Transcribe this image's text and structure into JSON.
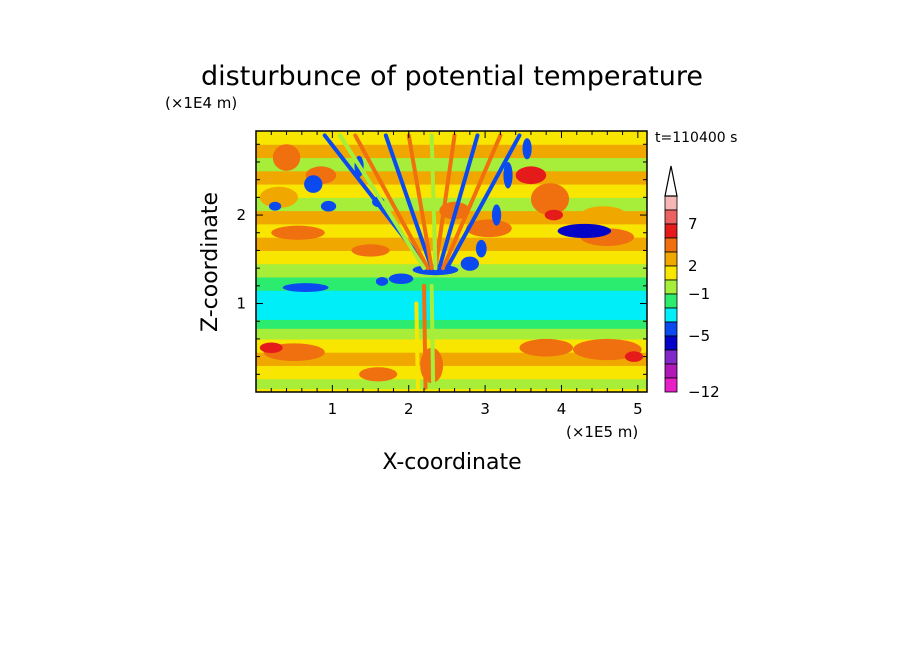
{
  "chart_data": {
    "type": "heatmap",
    "title": "disturbunce of potential temperature",
    "time_label": "t=110400 s",
    "xlabel": "X-coordinate",
    "ylabel": "Z-coordinate",
    "x_unit": "(×1E5 m)",
    "y_unit": "(×1E4 m)",
    "xlim": [
      0,
      5.12
    ],
    "ylim": [
      0,
      2.95
    ],
    "x_ticks": [
      "1",
      "2",
      "3",
      "4",
      "5"
    ],
    "y_ticks": [
      "1",
      "2"
    ],
    "colorbar": {
      "labels": [
        "7",
        "2",
        "−1",
        "−5",
        "−12"
      ],
      "label_values": [
        7,
        2,
        -1,
        -5,
        -12
      ],
      "colors": [
        "#f7b6b6",
        "#ec6262",
        "#e51b1b",
        "#f07010",
        "#f0a800",
        "#f8e600",
        "#a6ee3a",
        "#2bec6e",
        "#00eef8",
        "#0a4aef",
        "#0404c8",
        "#8228c8",
        "#b018b8",
        "#e81ec6"
      ],
      "extend": "max"
    },
    "bands": [
      {
        "z": 0.04,
        "level": 5
      },
      {
        "z": 0.15,
        "level": 6
      },
      {
        "z": 0.3,
        "level": 5
      },
      {
        "z": 0.45,
        "level": 4
      },
      {
        "z": 0.6,
        "level": 5
      },
      {
        "z": 0.72,
        "level": 6
      },
      {
        "z": 0.82,
        "level": 7
      },
      {
        "z": 1.0,
        "level": 8
      },
      {
        "z": 1.15,
        "level": 8
      },
      {
        "z": 1.3,
        "level": 7
      },
      {
        "z": 1.45,
        "level": 6
      },
      {
        "z": 1.6,
        "level": 5
      },
      {
        "z": 1.75,
        "level": 4
      },
      {
        "z": 1.9,
        "level": 5
      },
      {
        "z": 2.05,
        "level": 4
      },
      {
        "z": 2.2,
        "level": 6
      },
      {
        "z": 2.35,
        "level": 5
      },
      {
        "z": 2.5,
        "level": 4
      },
      {
        "z": 2.65,
        "level": 6
      },
      {
        "z": 2.8,
        "level": 4
      },
      {
        "z": 2.95,
        "level": 5
      }
    ],
    "blobs": [
      {
        "x": 0.3,
        "z": 2.2,
        "w": 0.25,
        "h": 0.12,
        "level": 4
      },
      {
        "x": 0.4,
        "z": 2.65,
        "w": 0.18,
        "h": 0.15,
        "level": 3
      },
      {
        "x": 0.85,
        "z": 2.45,
        "w": 0.2,
        "h": 0.1,
        "level": 3
      },
      {
        "x": 0.55,
        "z": 1.8,
        "w": 0.35,
        "h": 0.08,
        "level": 3
      },
      {
        "x": 1.5,
        "z": 1.6,
        "w": 0.25,
        "h": 0.07,
        "level": 3
      },
      {
        "x": 2.6,
        "z": 2.05,
        "w": 0.2,
        "h": 0.1,
        "level": 3
      },
      {
        "x": 3.05,
        "z": 1.85,
        "w": 0.3,
        "h": 0.1,
        "level": 3
      },
      {
        "x": 3.85,
        "z": 2.18,
        "w": 0.25,
        "h": 0.18,
        "level": 3
      },
      {
        "x": 3.6,
        "z": 2.45,
        "w": 0.2,
        "h": 0.1,
        "level": 2
      },
      {
        "x": 4.55,
        "z": 2.0,
        "w": 0.3,
        "h": 0.1,
        "level": 4
      },
      {
        "x": 4.6,
        "z": 0.48,
        "w": 0.45,
        "h": 0.12,
        "level": 3
      },
      {
        "x": 3.8,
        "z": 0.5,
        "w": 0.35,
        "h": 0.1,
        "level": 3
      },
      {
        "x": 0.5,
        "z": 0.45,
        "w": 0.4,
        "h": 0.1,
        "level": 3
      },
      {
        "x": 1.6,
        "z": 0.2,
        "w": 0.25,
        "h": 0.08,
        "level": 3
      },
      {
        "x": 2.3,
        "z": 0.3,
        "w": 0.15,
        "h": 0.2,
        "level": 3
      },
      {
        "x": 4.6,
        "z": 1.75,
        "w": 0.35,
        "h": 0.1,
        "level": 3
      },
      {
        "x": 0.25,
        "z": 2.1,
        "w": 0.08,
        "h": 0.05,
        "level": 9
      },
      {
        "x": 0.75,
        "z": 2.35,
        "w": 0.12,
        "h": 0.1,
        "level": 9
      },
      {
        "x": 0.95,
        "z": 2.1,
        "w": 0.1,
        "h": 0.06,
        "level": 9
      },
      {
        "x": 1.6,
        "z": 2.15,
        "w": 0.08,
        "h": 0.06,
        "level": 9
      },
      {
        "x": 1.35,
        "z": 2.55,
        "w": 0.06,
        "h": 0.12,
        "level": 9
      },
      {
        "x": 0.65,
        "z": 1.18,
        "w": 0.3,
        "h": 0.05,
        "level": 9
      },
      {
        "x": 1.65,
        "z": 1.25,
        "w": 0.08,
        "h": 0.05,
        "level": 9
      },
      {
        "x": 1.9,
        "z": 1.28,
        "w": 0.16,
        "h": 0.06,
        "level": 9
      },
      {
        "x": 2.35,
        "z": 1.38,
        "w": 0.3,
        "h": 0.06,
        "level": 9
      },
      {
        "x": 2.8,
        "z": 1.45,
        "w": 0.12,
        "h": 0.08,
        "level": 9
      },
      {
        "x": 2.95,
        "z": 1.62,
        "w": 0.07,
        "h": 0.1,
        "level": 9
      },
      {
        "x": 3.15,
        "z": 2.0,
        "w": 0.06,
        "h": 0.12,
        "level": 9
      },
      {
        "x": 3.3,
        "z": 2.45,
        "w": 0.06,
        "h": 0.15,
        "level": 9
      },
      {
        "x": 3.55,
        "z": 2.75,
        "w": 0.06,
        "h": 0.12,
        "level": 9
      },
      {
        "x": 4.3,
        "z": 1.82,
        "w": 0.35,
        "h": 0.08,
        "level": 10
      },
      {
        "x": 0.2,
        "z": 0.5,
        "w": 0.15,
        "h": 0.06,
        "level": 2
      },
      {
        "x": 4.95,
        "z": 0.4,
        "w": 0.12,
        "h": 0.06,
        "level": 2
      },
      {
        "x": 3.9,
        "z": 2.0,
        "w": 0.12,
        "h": 0.06,
        "level": 2
      }
    ],
    "streaks": [
      {
        "x1": 2.25,
        "z1": 1.4,
        "x2": 0.9,
        "z2": 2.9,
        "level": 9
      },
      {
        "x1": 2.25,
        "z1": 1.4,
        "x2": 1.3,
        "z2": 2.9,
        "level": 3
      },
      {
        "x1": 2.3,
        "z1": 1.4,
        "x2": 1.7,
        "z2": 2.9,
        "level": 9
      },
      {
        "x1": 2.3,
        "z1": 1.4,
        "x2": 2.0,
        "z2": 2.9,
        "level": 3
      },
      {
        "x1": 2.35,
        "z1": 1.4,
        "x2": 2.6,
        "z2": 2.9,
        "level": 3
      },
      {
        "x1": 2.4,
        "z1": 1.4,
        "x2": 2.9,
        "z2": 2.9,
        "level": 9
      },
      {
        "x1": 2.45,
        "z1": 1.4,
        "x2": 3.2,
        "z2": 2.9,
        "level": 3
      },
      {
        "x1": 2.5,
        "z1": 1.4,
        "x2": 3.45,
        "z2": 2.9,
        "level": 9
      },
      {
        "x1": 2.2,
        "z1": 1.4,
        "x2": 1.1,
        "z2": 2.9,
        "level": 6
      },
      {
        "x1": 2.35,
        "z1": 1.4,
        "x2": 2.3,
        "z2": 2.9,
        "level": 6
      },
      {
        "x1": 2.22,
        "z1": 0.05,
        "x2": 2.2,
        "z2": 1.2,
        "level": 3
      },
      {
        "x1": 2.32,
        "z1": 0.05,
        "x2": 2.3,
        "z2": 1.2,
        "level": 6
      },
      {
        "x1": 2.12,
        "z1": 0.05,
        "x2": 2.1,
        "z2": 1.0,
        "level": 5
      }
    ]
  }
}
